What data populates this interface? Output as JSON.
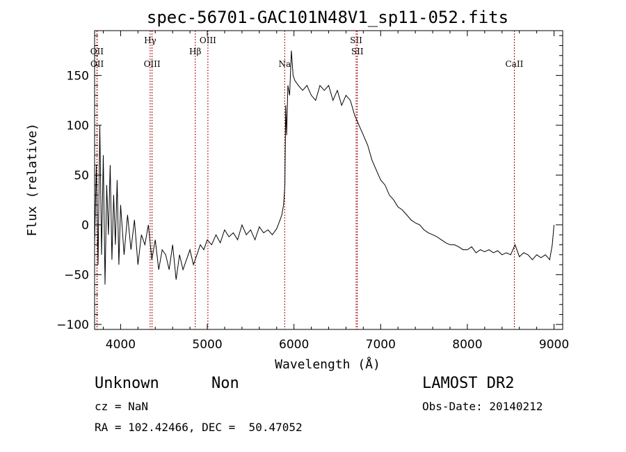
{
  "chart_data": {
    "type": "line",
    "title": "spec-56701-GAC101N48V1_sp11-052.fits",
    "xlabel": "Wavelength (Å)",
    "ylabel": "Flux (relative)",
    "xlim": [
      3700,
      9100
    ],
    "ylim": [
      -105,
      195
    ],
    "xticks": [
      4000,
      5000,
      6000,
      7000,
      8000,
      9000
    ],
    "yticks": [
      -100,
      -50,
      0,
      50,
      100,
      150
    ],
    "grid": false,
    "series": [
      {
        "x": [
          3700,
          3720,
          3740,
          3760,
          3780,
          3800,
          3820,
          3840,
          3860,
          3880,
          3900,
          3920,
          3940,
          3960,
          3980,
          4000,
          4040,
          4080,
          4120,
          4160,
          4200,
          4240,
          4280,
          4320,
          4360,
          4400,
          4440,
          4480,
          4520,
          4560,
          4600,
          4640,
          4680,
          4720,
          4760,
          4800,
          4840,
          4880,
          4920,
          4960,
          5000,
          5050,
          5100,
          5150,
          5200,
          5250,
          5300,
          5350,
          5400,
          5450,
          5500,
          5550,
          5600,
          5650,
          5700,
          5750,
          5800,
          5840,
          5860,
          5880,
          5895,
          5905,
          5915,
          5930,
          5950,
          5970,
          5990,
          6010,
          6050,
          6100,
          6150,
          6200,
          6250,
          6300,
          6350,
          6400,
          6450,
          6500,
          6550,
          6600,
          6650,
          6700,
          6750,
          6800,
          6850,
          6900,
          6950,
          7000,
          7050,
          7100,
          7150,
          7200,
          7250,
          7300,
          7350,
          7400,
          7450,
          7500,
          7550,
          7600,
          7650,
          7700,
          7750,
          7800,
          7850,
          7900,
          7950,
          8000,
          8050,
          8100,
          8150,
          8200,
          8250,
          8300,
          8350,
          8400,
          8450,
          8500,
          8550,
          8600,
          8650,
          8700,
          8750,
          8800,
          8850,
          8900,
          8950,
          8980,
          9000
        ],
        "y": [
          -20,
          60,
          -40,
          100,
          -30,
          70,
          -60,
          40,
          -10,
          60,
          -35,
          30,
          -20,
          45,
          -40,
          20,
          -30,
          10,
          -25,
          5,
          -40,
          -10,
          -20,
          0,
          -35,
          -15,
          -45,
          -25,
          -30,
          -45,
          -20,
          -55,
          -30,
          -45,
          -35,
          -25,
          -40,
          -30,
          -20,
          -25,
          -15,
          -20,
          -10,
          -18,
          -5,
          -12,
          -8,
          -15,
          0,
          -10,
          -5,
          -15,
          -2,
          -8,
          -5,
          -10,
          -4,
          5,
          10,
          20,
          40,
          120,
          90,
          140,
          130,
          175,
          150,
          145,
          140,
          135,
          140,
          130,
          125,
          140,
          135,
          140,
          125,
          135,
          120,
          130,
          125,
          110,
          100,
          90,
          80,
          65,
          55,
          45,
          40,
          30,
          25,
          18,
          15,
          10,
          5,
          2,
          0,
          -5,
          -8,
          -10,
          -12,
          -15,
          -18,
          -20,
          -20,
          -22,
          -25,
          -25,
          -22,
          -28,
          -25,
          -27,
          -25,
          -28,
          -26,
          -30,
          -28,
          -30,
          -20,
          -32,
          -28,
          -30,
          -35,
          -30,
          -33,
          -30,
          -35,
          -20,
          0
        ]
      }
    ],
    "lines": [
      {
        "label": "OII",
        "x": 3727
      },
      {
        "label": "OII",
        "x": 3729
      },
      {
        "label": "Hγ",
        "x": 4341
      },
      {
        "label": "OIII",
        "x": 4363
      },
      {
        "label": "Hβ",
        "x": 4861
      },
      {
        "label": "OIII",
        "x": 5007
      },
      {
        "label": "Na",
        "x": 5893
      },
      {
        "label": "SII",
        "x": 6717
      },
      {
        "label": "SII",
        "x": 6731
      },
      {
        "label": "CaII",
        "x": 8542
      }
    ]
  },
  "info": {
    "object_class": "Unknown",
    "object_subclass": "Non",
    "survey": "LAMOST DR2",
    "cz": "cz = NaN",
    "obs_date": "Obs-Date: 20140212",
    "coords": "RA = 102.42466, DEC =  50.47052"
  },
  "colors": {
    "spectrum": "#000000",
    "emission_line": "#a00000",
    "axes": "#000000"
  }
}
